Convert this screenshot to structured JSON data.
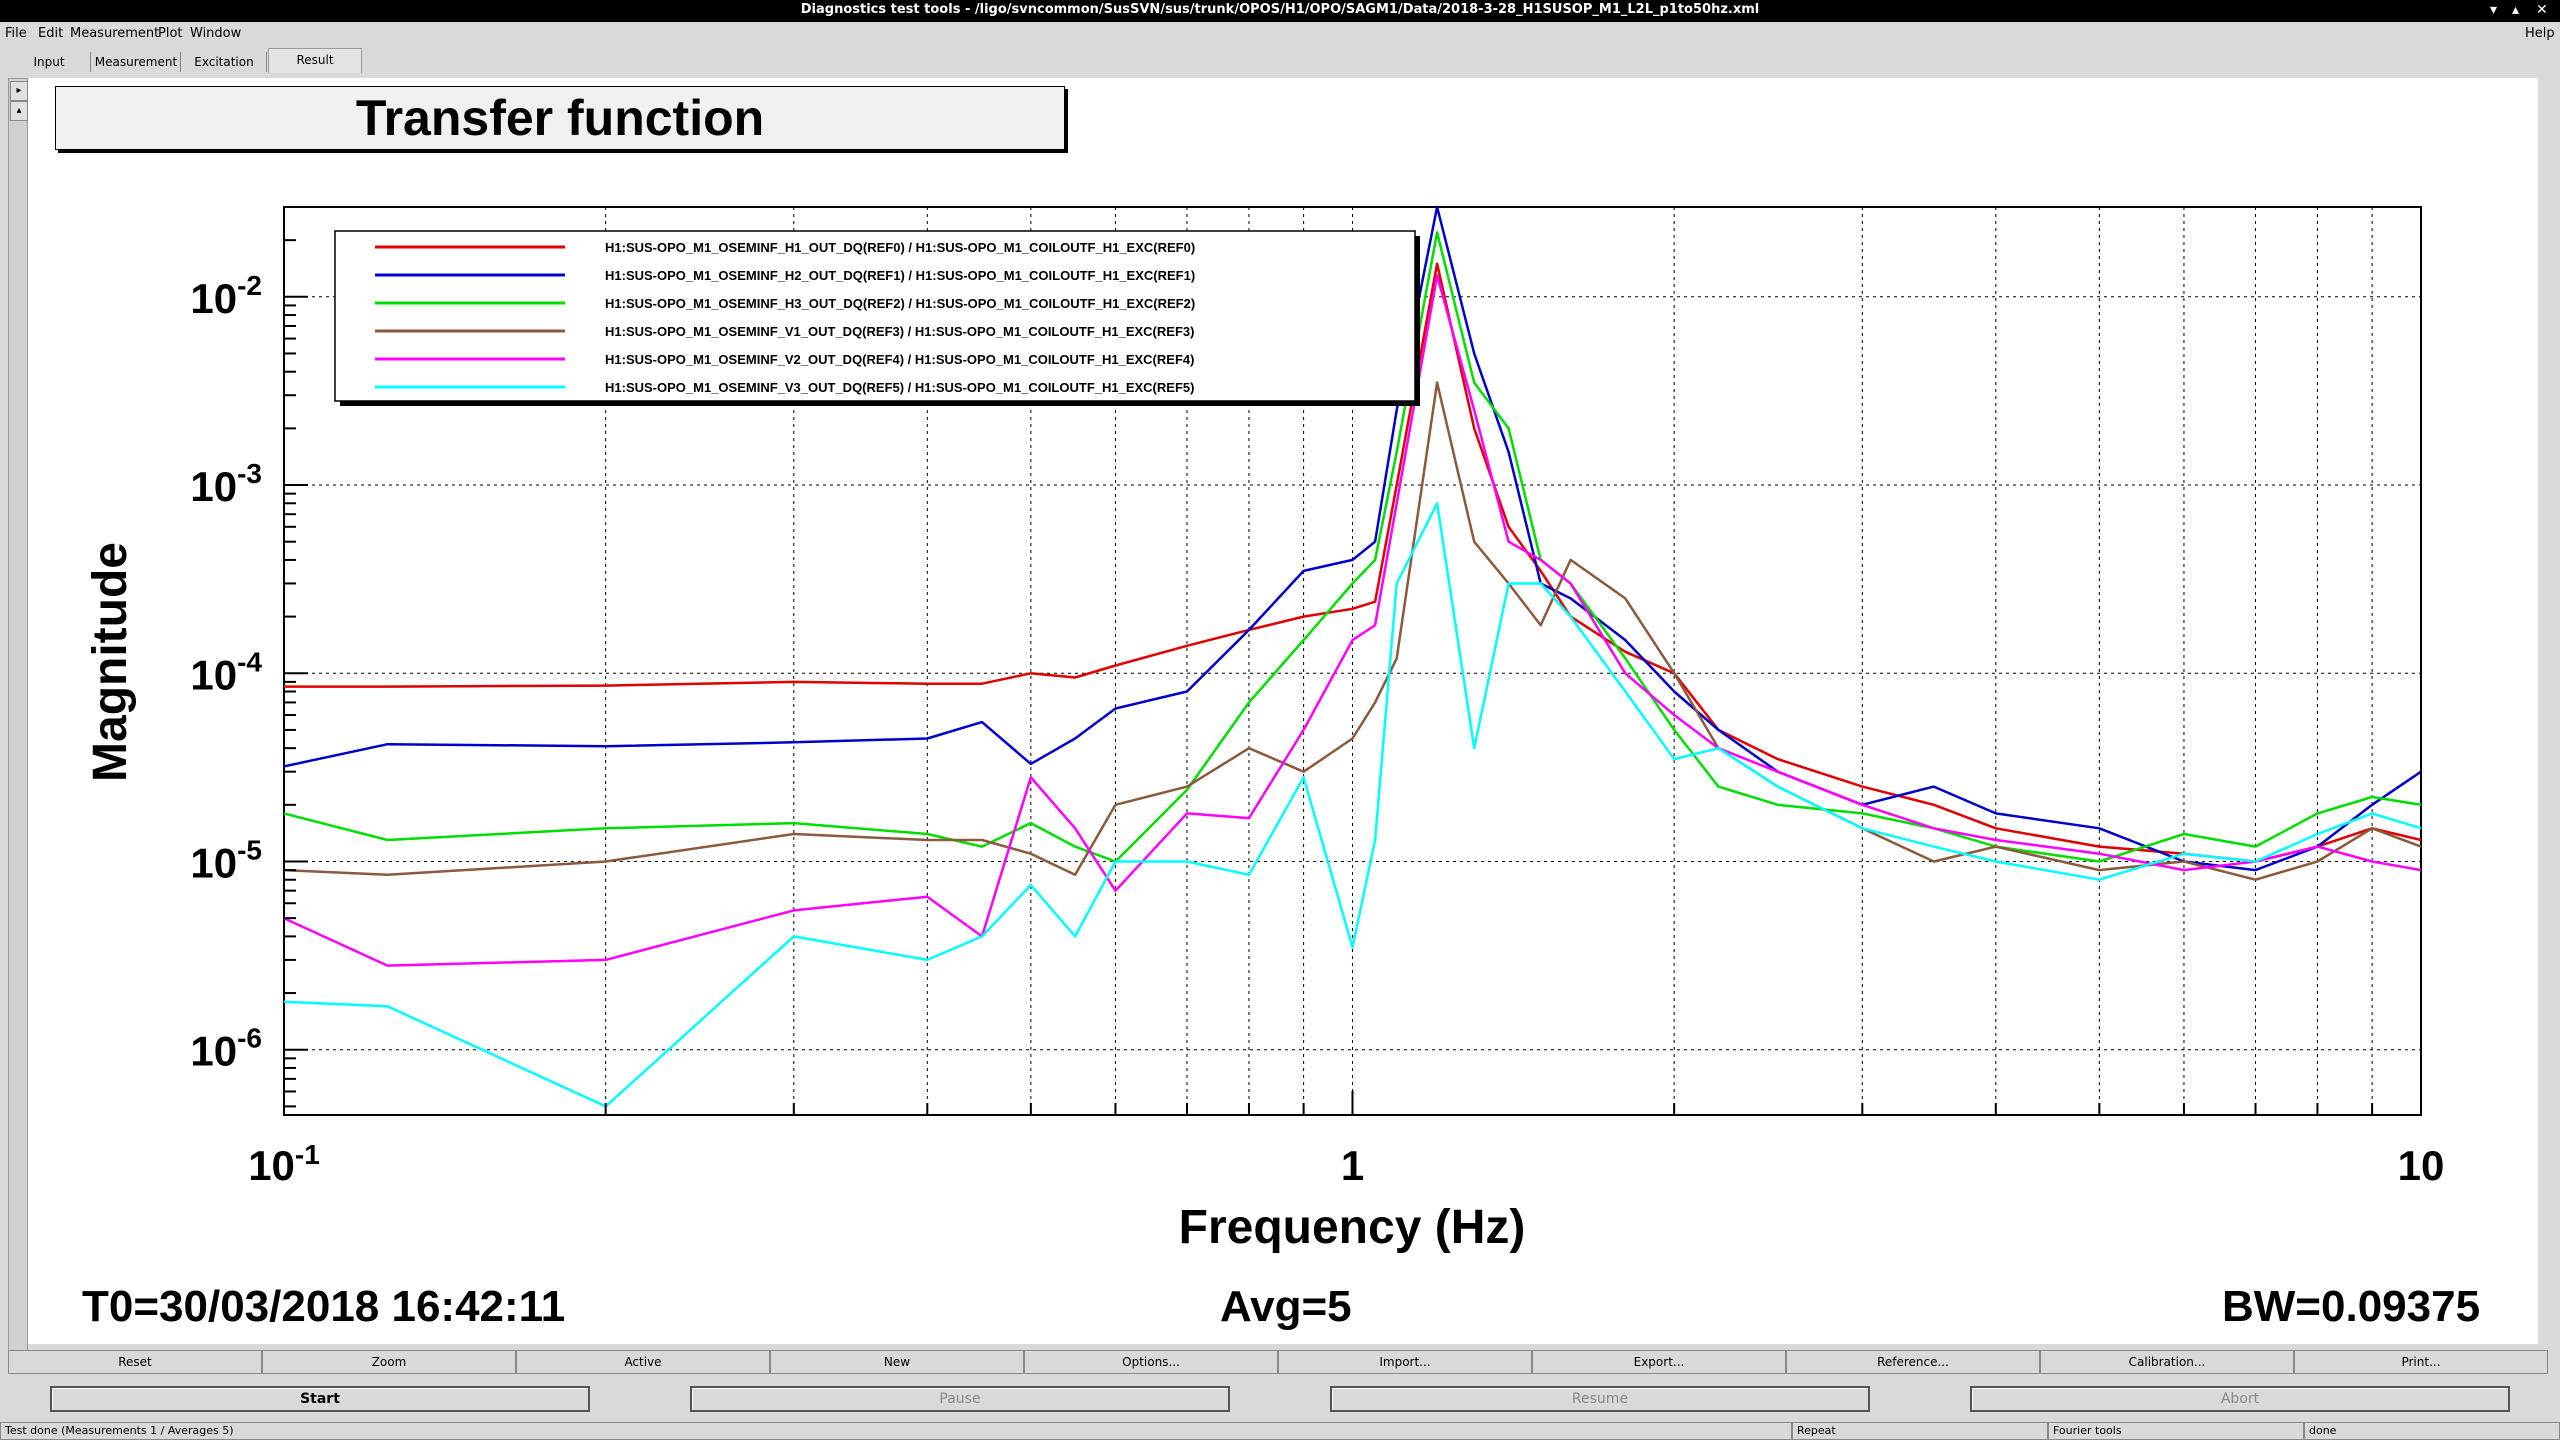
{
  "window": {
    "title": "Diagnostics test tools - /ligo/svncommon/SusSVN/sus/trunk/OPOS/H1/OPO/SAGM1/Data/2018-3-28_H1SUSOP_M1_L2L_p1to50hz.xml"
  },
  "menu": {
    "items": [
      "File",
      "Edit",
      "Measurement",
      "Plot",
      "Window"
    ],
    "help": "Help"
  },
  "tabs": [
    "Input",
    "Measurement",
    "Excitation",
    "Result"
  ],
  "plot": {
    "title": "Transfer function",
    "t0": "T0=30/03/2018 16:42:11",
    "avg": "Avg=5",
    "bw": "BW=0.09375"
  },
  "chart_data": {
    "type": "line",
    "title": "Transfer function",
    "xlabel": "Frequency (Hz)",
    "ylabel": "Magnitude",
    "xscale": "log",
    "yscale": "log",
    "xlim": [
      0.1,
      10
    ],
    "ylim": [
      4.5e-07,
      0.03
    ],
    "grid": true,
    "legend_position": "top-left",
    "x_ticks": [
      "10-1",
      "1",
      "10"
    ],
    "y_ticks": [
      "10-6",
      "10-5",
      "10-4",
      "10-3",
      "10-2"
    ],
    "series": [
      {
        "name": "H1:SUS-OPO_M1_OSEMINF_H1_OUT_DQ(REF0) / H1:SUS-OPO_M1_COILOUTF_H1_EXC(REF0)",
        "color": "#e00000",
        "x": [
          0.1,
          0.125,
          0.2,
          0.3,
          0.4,
          0.45,
          0.5,
          0.55,
          0.6,
          0.7,
          0.8,
          0.9,
          1.0,
          1.05,
          1.1,
          1.2,
          1.3,
          1.4,
          1.5,
          1.6,
          1.8,
          2.0,
          2.2,
          2.5,
          3.0,
          3.5,
          4.0,
          5.0,
          6.0,
          7.0,
          8.0,
          9.0,
          10.0
        ],
        "y": [
          8.5e-05,
          8.5e-05,
          8.6e-05,
          9e-05,
          8.8e-05,
          8.8e-05,
          0.0001,
          9.5e-05,
          0.00011,
          0.00014,
          0.00017,
          0.0002,
          0.00022,
          0.00024,
          0.001,
          0.015,
          0.002,
          0.0006,
          0.00035,
          0.0002,
          0.00013,
          0.0001,
          5e-05,
          3.5e-05,
          2.5e-05,
          2e-05,
          1.5e-05,
          1.2e-05,
          1.1e-05,
          1e-05,
          1.2e-05,
          1.5e-05,
          1.3e-05
        ]
      },
      {
        "name": "H1:SUS-OPO_M1_OSEMINF_H2_OUT_DQ(REF1) / H1:SUS-OPO_M1_COILOUTF_H1_EXC(REF1)",
        "color": "#0000cc",
        "x": [
          0.1,
          0.125,
          0.2,
          0.3,
          0.4,
          0.45,
          0.5,
          0.55,
          0.6,
          0.7,
          0.8,
          0.9,
          1.0,
          1.05,
          1.1,
          1.2,
          1.3,
          1.4,
          1.5,
          1.6,
          1.8,
          2.0,
          2.2,
          2.5,
          3.0,
          3.5,
          4.0,
          5.0,
          6.0,
          7.0,
          8.0,
          9.0,
          10.0
        ],
        "y": [
          3.2e-05,
          4.2e-05,
          4.1e-05,
          4.3e-05,
          4.5e-05,
          5.5e-05,
          3.3e-05,
          4.5e-05,
          6.5e-05,
          8e-05,
          0.00017,
          0.00035,
          0.0004,
          0.0005,
          0.0025,
          0.03,
          0.005,
          0.0015,
          0.0003,
          0.00025,
          0.00015,
          8e-05,
          5e-05,
          3e-05,
          2e-05,
          2.5e-05,
          1.8e-05,
          1.5e-05,
          1e-05,
          9e-06,
          1.2e-05,
          2e-05,
          3e-05
        ]
      },
      {
        "name": "H1:SUS-OPO_M1_OSEMINF_H3_OUT_DQ(REF2) / H1:SUS-OPO_M1_COILOUTF_H1_EXC(REF2)",
        "color": "#00dd00",
        "x": [
          0.1,
          0.125,
          0.2,
          0.3,
          0.4,
          0.45,
          0.5,
          0.55,
          0.6,
          0.7,
          0.8,
          0.9,
          1.0,
          1.05,
          1.1,
          1.2,
          1.3,
          1.4,
          1.5,
          1.6,
          1.8,
          2.0,
          2.2,
          2.5,
          3.0,
          3.5,
          4.0,
          5.0,
          6.0,
          7.0,
          8.0,
          9.0,
          10.0
        ],
        "y": [
          1.8e-05,
          1.3e-05,
          1.5e-05,
          1.6e-05,
          1.4e-05,
          1.2e-05,
          1.6e-05,
          1.2e-05,
          1e-05,
          2.4e-05,
          7e-05,
          0.00015,
          0.0003,
          0.0004,
          0.0015,
          0.022,
          0.0035,
          0.002,
          0.0004,
          0.0003,
          0.00012,
          5e-05,
          2.5e-05,
          2e-05,
          1.8e-05,
          1.5e-05,
          1.2e-05,
          1e-05,
          1.4e-05,
          1.2e-05,
          1.8e-05,
          2.2e-05,
          2e-05
        ]
      },
      {
        "name": "H1:SUS-OPO_M1_OSEMINF_V1_OUT_DQ(REF3) / H1:SUS-OPO_M1_COILOUTF_H1_EXC(REF3)",
        "color": "#8b5a3c",
        "x": [
          0.1,
          0.125,
          0.2,
          0.3,
          0.4,
          0.45,
          0.5,
          0.55,
          0.6,
          0.7,
          0.8,
          0.9,
          1.0,
          1.05,
          1.1,
          1.2,
          1.3,
          1.4,
          1.5,
          1.6,
          1.8,
          2.0,
          2.2,
          2.5,
          3.0,
          3.5,
          4.0,
          5.0,
          6.0,
          7.0,
          8.0,
          9.0,
          10.0
        ],
        "y": [
          9e-06,
          8.5e-06,
          1e-05,
          1.4e-05,
          1.3e-05,
          1.3e-05,
          1.1e-05,
          8.5e-06,
          2e-05,
          2.5e-05,
          4e-05,
          3e-05,
          4.5e-05,
          7e-05,
          0.00012,
          0.0035,
          0.0005,
          0.0003,
          0.00018,
          0.0004,
          0.00025,
          0.0001,
          4e-05,
          2.5e-05,
          1.5e-05,
          1e-05,
          1.2e-05,
          9e-06,
          1e-05,
          8e-06,
          1e-05,
          1.5e-05,
          1.2e-05
        ]
      },
      {
        "name": "H1:SUS-OPO_M1_OSEMINF_V2_OUT_DQ(REF4) / H1:SUS-OPO_M1_COILOUTF_H1_EXC(REF4)",
        "color": "#ff00ff",
        "x": [
          0.1,
          0.125,
          0.2,
          0.3,
          0.4,
          0.45,
          0.5,
          0.55,
          0.6,
          0.7,
          0.8,
          0.9,
          1.0,
          1.05,
          1.1,
          1.2,
          1.3,
          1.4,
          1.5,
          1.6,
          1.8,
          2.0,
          2.2,
          2.5,
          3.0,
          3.5,
          4.0,
          5.0,
          6.0,
          7.0,
          8.0,
          9.0,
          10.0
        ],
        "y": [
          5e-06,
          2.8e-06,
          3e-06,
          5.5e-06,
          6.5e-06,
          4e-06,
          2.8e-05,
          1.5e-05,
          7e-06,
          1.8e-05,
          1.7e-05,
          5e-05,
          0.00015,
          0.00018,
          0.0008,
          0.013,
          0.0025,
          0.0005,
          0.0004,
          0.0003,
          0.0001,
          6e-05,
          4e-05,
          3e-05,
          2e-05,
          1.5e-05,
          1.3e-05,
          1.1e-05,
          9e-06,
          1e-05,
          1.2e-05,
          1e-05,
          9e-06
        ]
      },
      {
        "name": "H1:SUS-OPO_M1_OSEMINF_V3_OUT_DQ(REF5) / H1:SUS-OPO_M1_COILOUTF_H1_EXC(REF5)",
        "color": "#00ffff",
        "x": [
          0.1,
          0.125,
          0.2,
          0.3,
          0.4,
          0.45,
          0.5,
          0.55,
          0.6,
          0.7,
          0.8,
          0.9,
          1.0,
          1.05,
          1.1,
          1.2,
          1.3,
          1.4,
          1.5,
          1.6,
          1.8,
          2.0,
          2.2,
          2.5,
          3.0,
          3.5,
          4.0,
          5.0,
          6.0,
          7.0,
          8.0,
          9.0,
          10.0
        ],
        "y": [
          1.8e-06,
          1.7e-06,
          5e-07,
          4e-06,
          3e-06,
          4e-06,
          7.5e-06,
          4e-06,
          1e-05,
          1e-05,
          8.5e-06,
          2.8e-05,
          3.5e-06,
          1.3e-05,
          0.0003,
          0.0008,
          4e-05,
          0.0003,
          0.0003,
          0.0002,
          8e-05,
          3.5e-05,
          4e-05,
          2.5e-05,
          1.5e-05,
          1.2e-05,
          1e-05,
          8e-06,
          1.1e-05,
          1e-05,
          1.4e-05,
          1.8e-05,
          1.5e-05
        ]
      }
    ]
  },
  "bottom_buttons": [
    "Reset",
    "Zoom",
    "Active",
    "New",
    "Options...",
    "Import...",
    "Export...",
    "Reference...",
    "Calibration...",
    "Print..."
  ],
  "control_buttons": {
    "start": "Start",
    "pause": "Pause",
    "resume": "Resume",
    "abort": "Abort"
  },
  "status": {
    "message": "Test done (Measurements 1 / Averages 5)",
    "repeat": "Repeat",
    "tools": "Fourier tools",
    "state": "done"
  }
}
